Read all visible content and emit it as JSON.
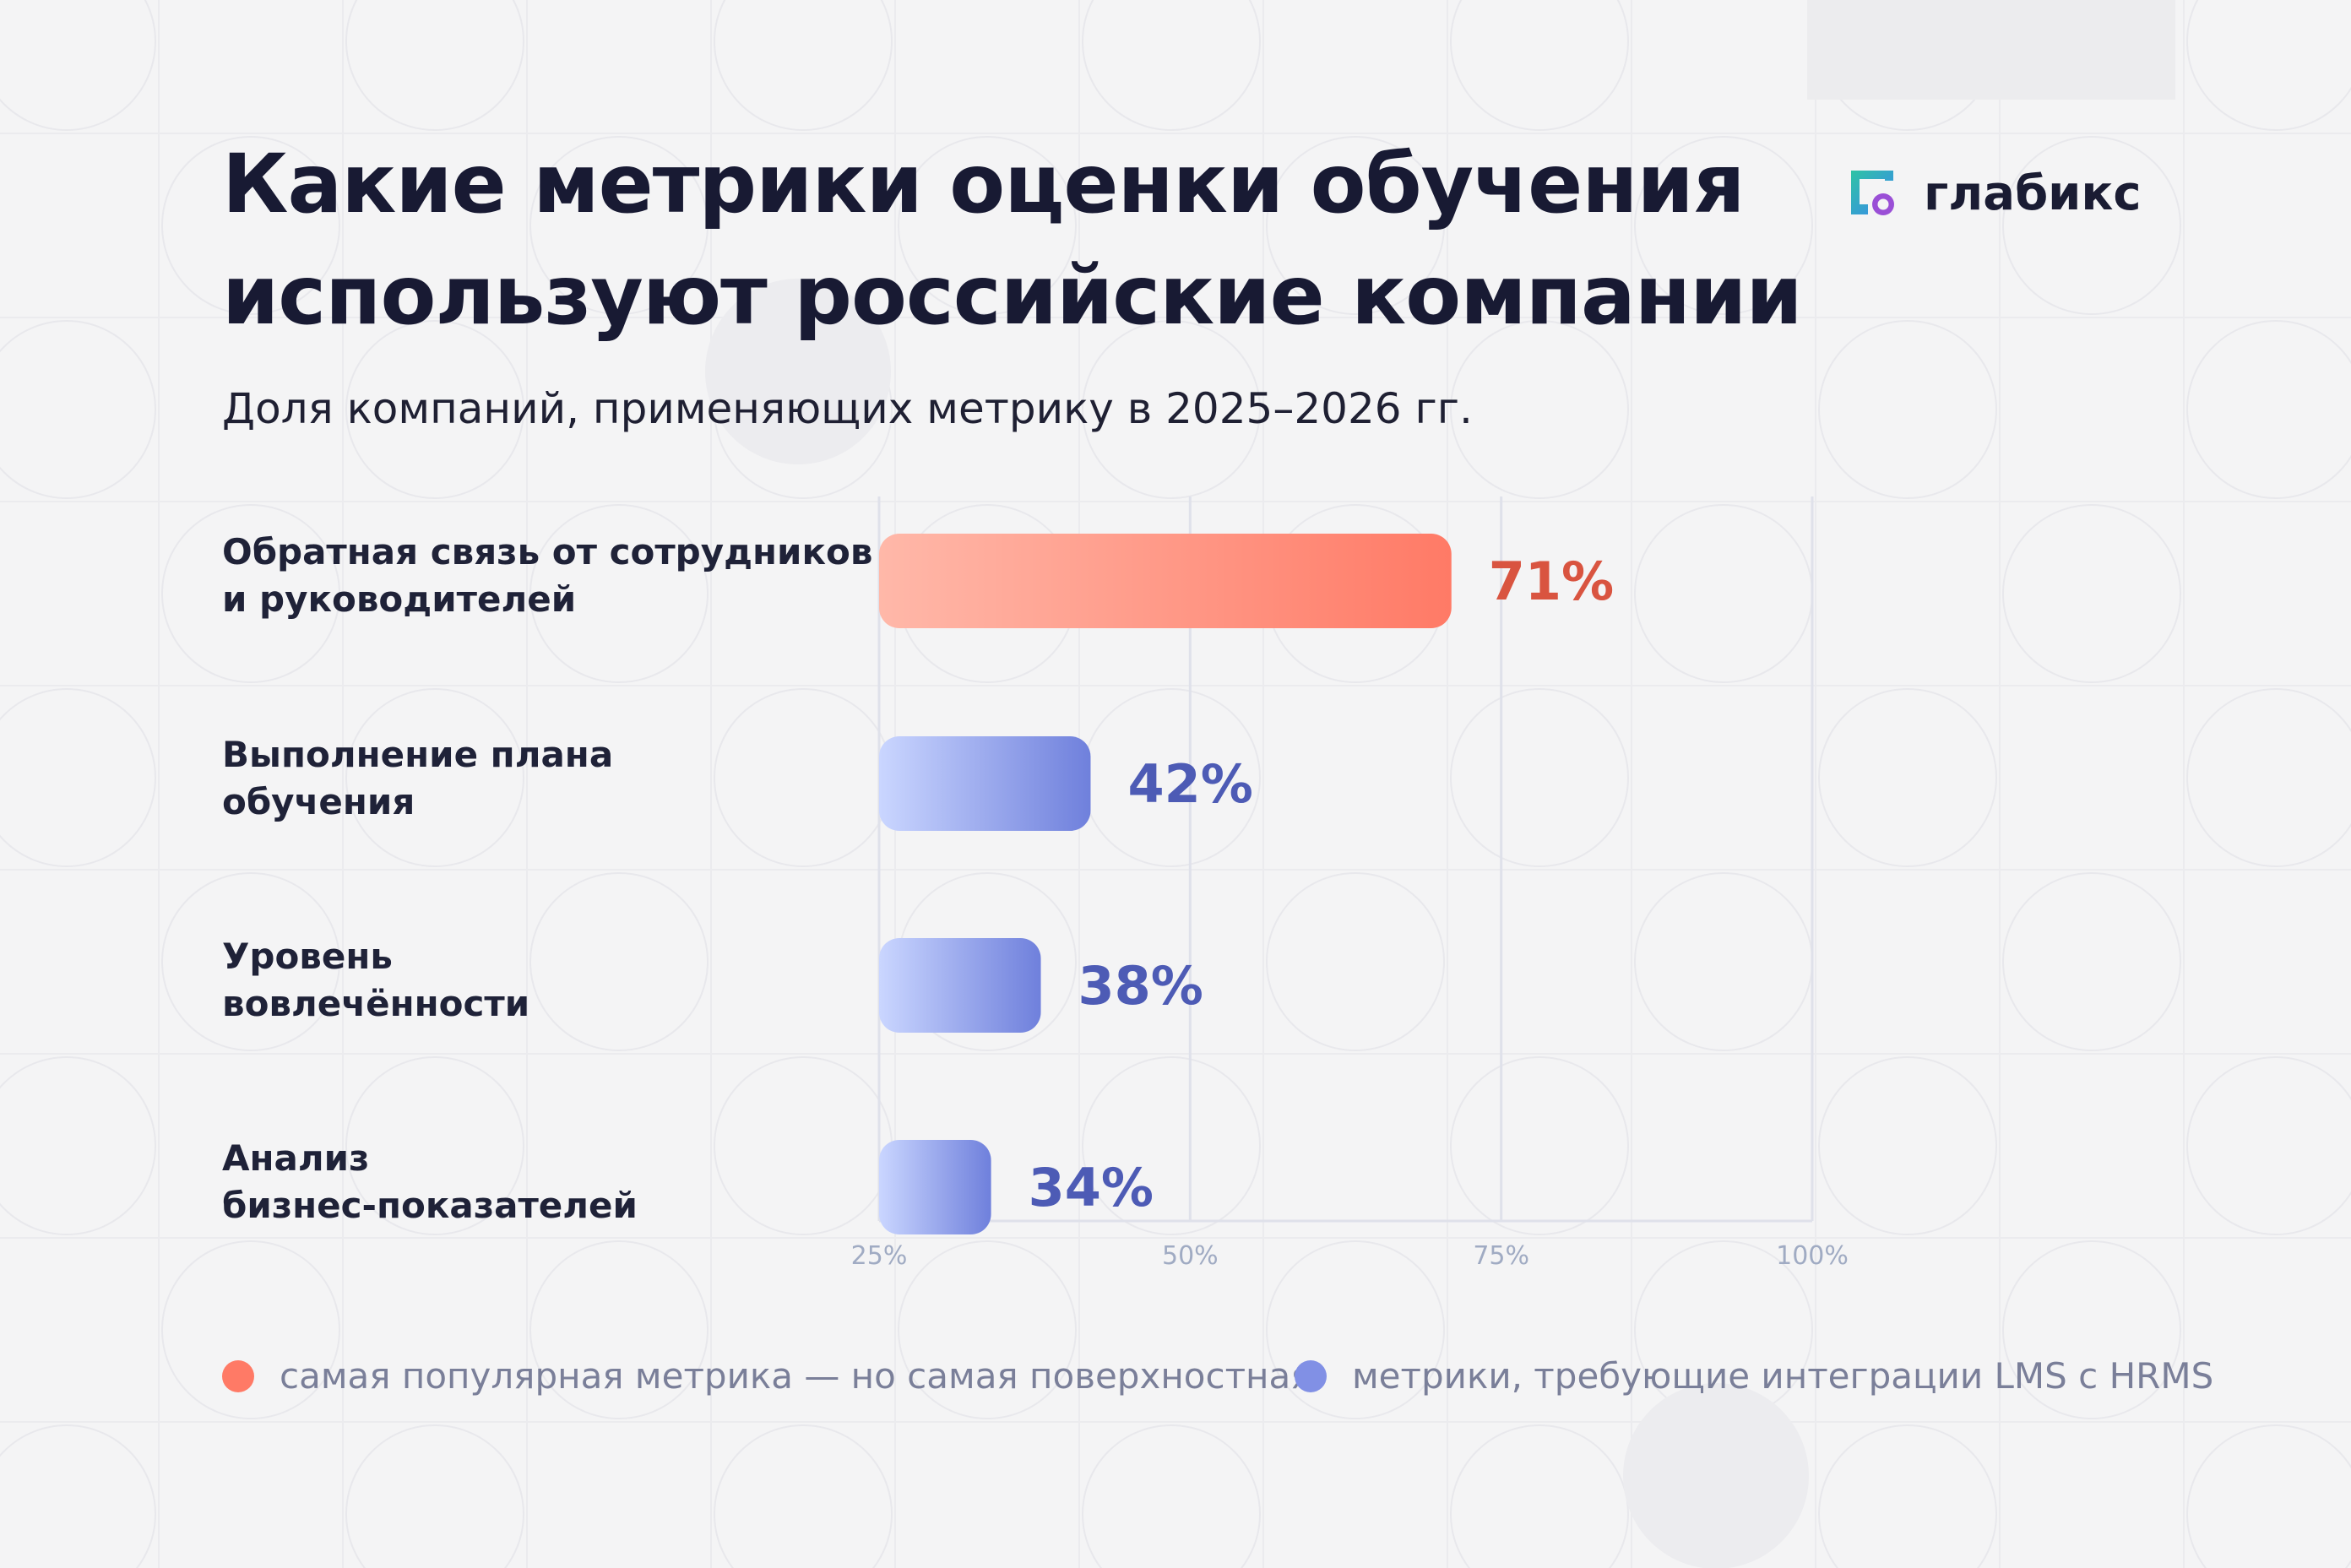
{
  "title": "Какие метрики оценки обучения используют российские компании",
  "subtitle": "Доля компаний, применяющих метрику в 2025–2026 гг.",
  "logo": {
    "text": "глабикс",
    "icon": "glabix-logo-icon"
  },
  "colors": {
    "highlight_start": "#ffb8a9",
    "highlight_end": "#ff7a66",
    "highlight_label": "#d95440",
    "default_start": "#cad6ff",
    "default_end": "#6f80dc",
    "default_label": "#4d5bb5",
    "axis_tick": "#a0abc3",
    "grid": "#dfe1ea"
  },
  "legend": [
    {
      "label": "самая популярная метрика — но самая поверхностная",
      "color": "#ff7a66"
    },
    {
      "label": "метрики, требующие интеграции LMS с HRMS",
      "color": "#8190e5"
    }
  ],
  "chart_data": {
    "type": "bar",
    "orientation": "horizontal",
    "categories": [
      [
        "Обратная связь от сотрудников",
        "и руководителей"
      ],
      [
        "Выполнение плана",
        "обучения"
      ],
      [
        "Уровень",
        "вовлечённости"
      ],
      [
        "Анализ",
        "бизнес-показателей"
      ]
    ],
    "values": [
      71,
      42,
      38,
      34
    ],
    "value_labels": [
      "71%",
      "42%",
      "38%",
      "34%"
    ],
    "highlight": [
      true,
      false,
      false,
      false
    ],
    "xlim": [
      25,
      100
    ],
    "xticks": [
      25,
      50,
      75,
      100
    ],
    "xtick_labels": [
      "25%",
      "50%",
      "75%",
      "100%"
    ],
    "unit": "%",
    "grid": false
  }
}
